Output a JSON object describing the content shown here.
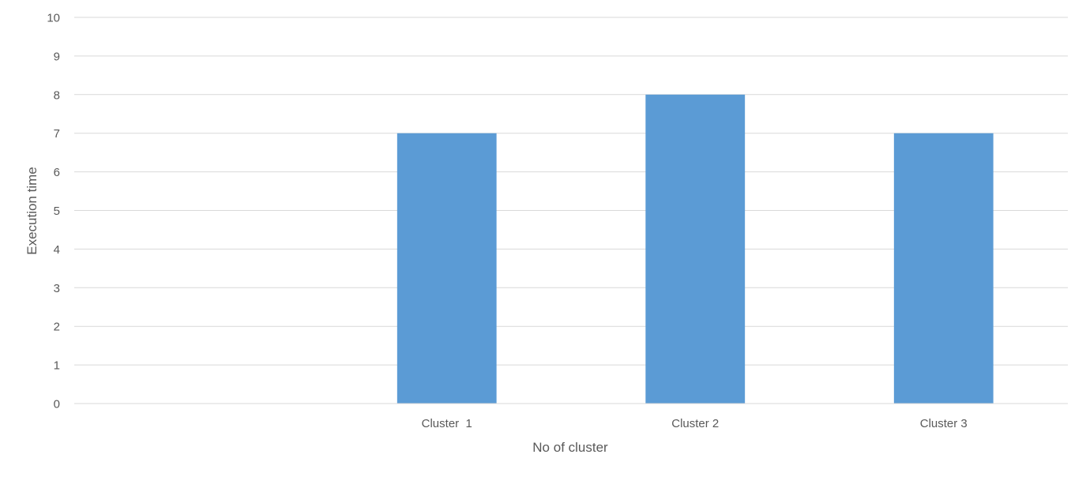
{
  "chart_data": {
    "type": "bar",
    "categories": [
      "",
      "Cluster  1",
      "Cluster 2",
      "Cluster 3"
    ],
    "values": [
      null,
      7,
      8,
      7
    ],
    "xlabel": "No of cluster",
    "ylabel": "Execution time",
    "ylim": [
      0,
      10
    ],
    "yticks": [
      "0",
      "1",
      "2",
      "3",
      "4",
      "5",
      "6",
      "7",
      "8",
      "9",
      "10"
    ],
    "grid": true,
    "legend": "none",
    "colors": {
      "bar": "#5b9bd5",
      "grid": "#d9d9d9",
      "text": "#595959"
    }
  }
}
